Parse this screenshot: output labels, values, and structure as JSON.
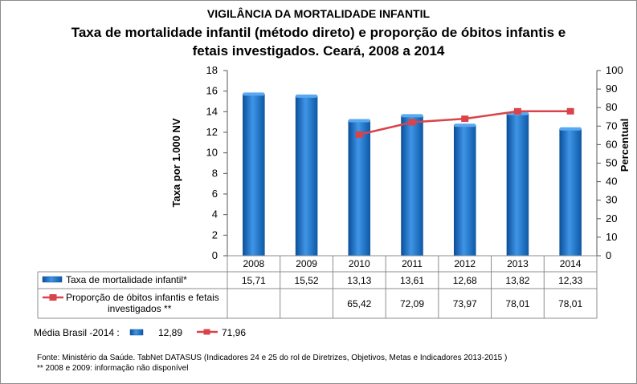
{
  "header": {
    "supertitle": "VIGILÂNCIA DA MORTALIDADE INFANTIL",
    "title_line1": "Taxa de mortalidade infantil (método direto) e proporção de óbitos infantis e",
    "title_line2": "fetais investigados. Ceará, 2008 a 2014"
  },
  "chart_data": {
    "type": "bar+line",
    "categories": [
      "2008",
      "2009",
      "2010",
      "2011",
      "2012",
      "2013",
      "2014"
    ],
    "series": [
      {
        "name": "Taxa de mortalidade infantil*",
        "type": "bar",
        "axis": "left",
        "values": [
          15.71,
          15.52,
          13.13,
          13.61,
          12.68,
          13.82,
          12.33
        ],
        "labels": [
          "15,71",
          "15,52",
          "13,13",
          "13,61",
          "12,68",
          "13,82",
          "12,33"
        ],
        "color": "#1f6fc0"
      },
      {
        "name_line1": "Proporção de óbitos infantis e fetais",
        "name_line2": "investigados **",
        "type": "line",
        "axis": "right",
        "values": [
          null,
          null,
          65.42,
          72.09,
          73.97,
          78.01,
          78.01
        ],
        "labels": [
          "",
          "",
          "65,42",
          "72,09",
          "73,97",
          "78,01",
          "78,01"
        ],
        "color": "#d9434a"
      }
    ],
    "y_left": {
      "label": "Taxa  por 1.000 NV",
      "range": [
        0,
        18
      ],
      "ticks": [
        "0",
        "2",
        "4",
        "6",
        "8",
        "10",
        "12",
        "14",
        "16",
        "18"
      ]
    },
    "y_right": {
      "label": "Percentual",
      "range": [
        0,
        100
      ],
      "ticks": [
        "0",
        "10",
        "20",
        "30",
        "40",
        "50",
        "60",
        "70",
        "80",
        "90",
        "100"
      ]
    },
    "legend_placement": "data table below chart"
  },
  "average": {
    "label": "Média Brasil -2014 :",
    "bar_value": "12,89",
    "line_value": "71,96"
  },
  "footnotes": {
    "source": "Fonte: Ministério da Saúde. TabNet DATASUS (Indicadores 24 e 25 do rol de Diretrizes, Objetivos, Metas e Indicadores 2013-2015 )",
    "note": "** 2008 e 2009: informação não disponível"
  }
}
